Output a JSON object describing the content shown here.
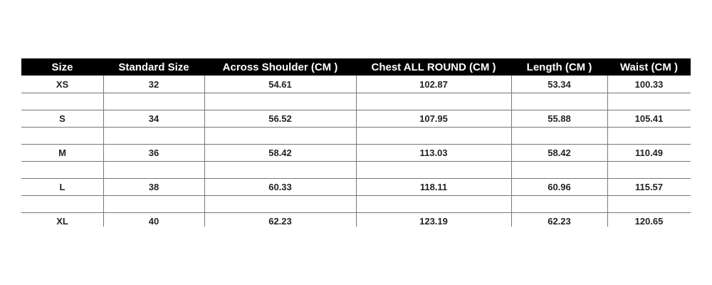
{
  "table": {
    "header": [
      "Size",
      "Standard Size",
      "Across Shoulder (CM )",
      "Chest ALL ROUND (CM )",
      "Length (CM )",
      "Waist (CM )"
    ],
    "rows": [
      [
        "XS",
        "32",
        "54.61",
        "102.87",
        "53.34",
        "100.33"
      ],
      [
        "S",
        "34",
        "56.52",
        "107.95",
        "55.88",
        "105.41"
      ],
      [
        "M",
        "36",
        "58.42",
        "113.03",
        "58.42",
        "110.49"
      ],
      [
        "L",
        "38",
        "60.33",
        "118.11",
        "60.96",
        "115.57"
      ],
      [
        "XL",
        "40",
        "62.23",
        "123.19",
        "62.23",
        "120.65"
      ]
    ]
  }
}
